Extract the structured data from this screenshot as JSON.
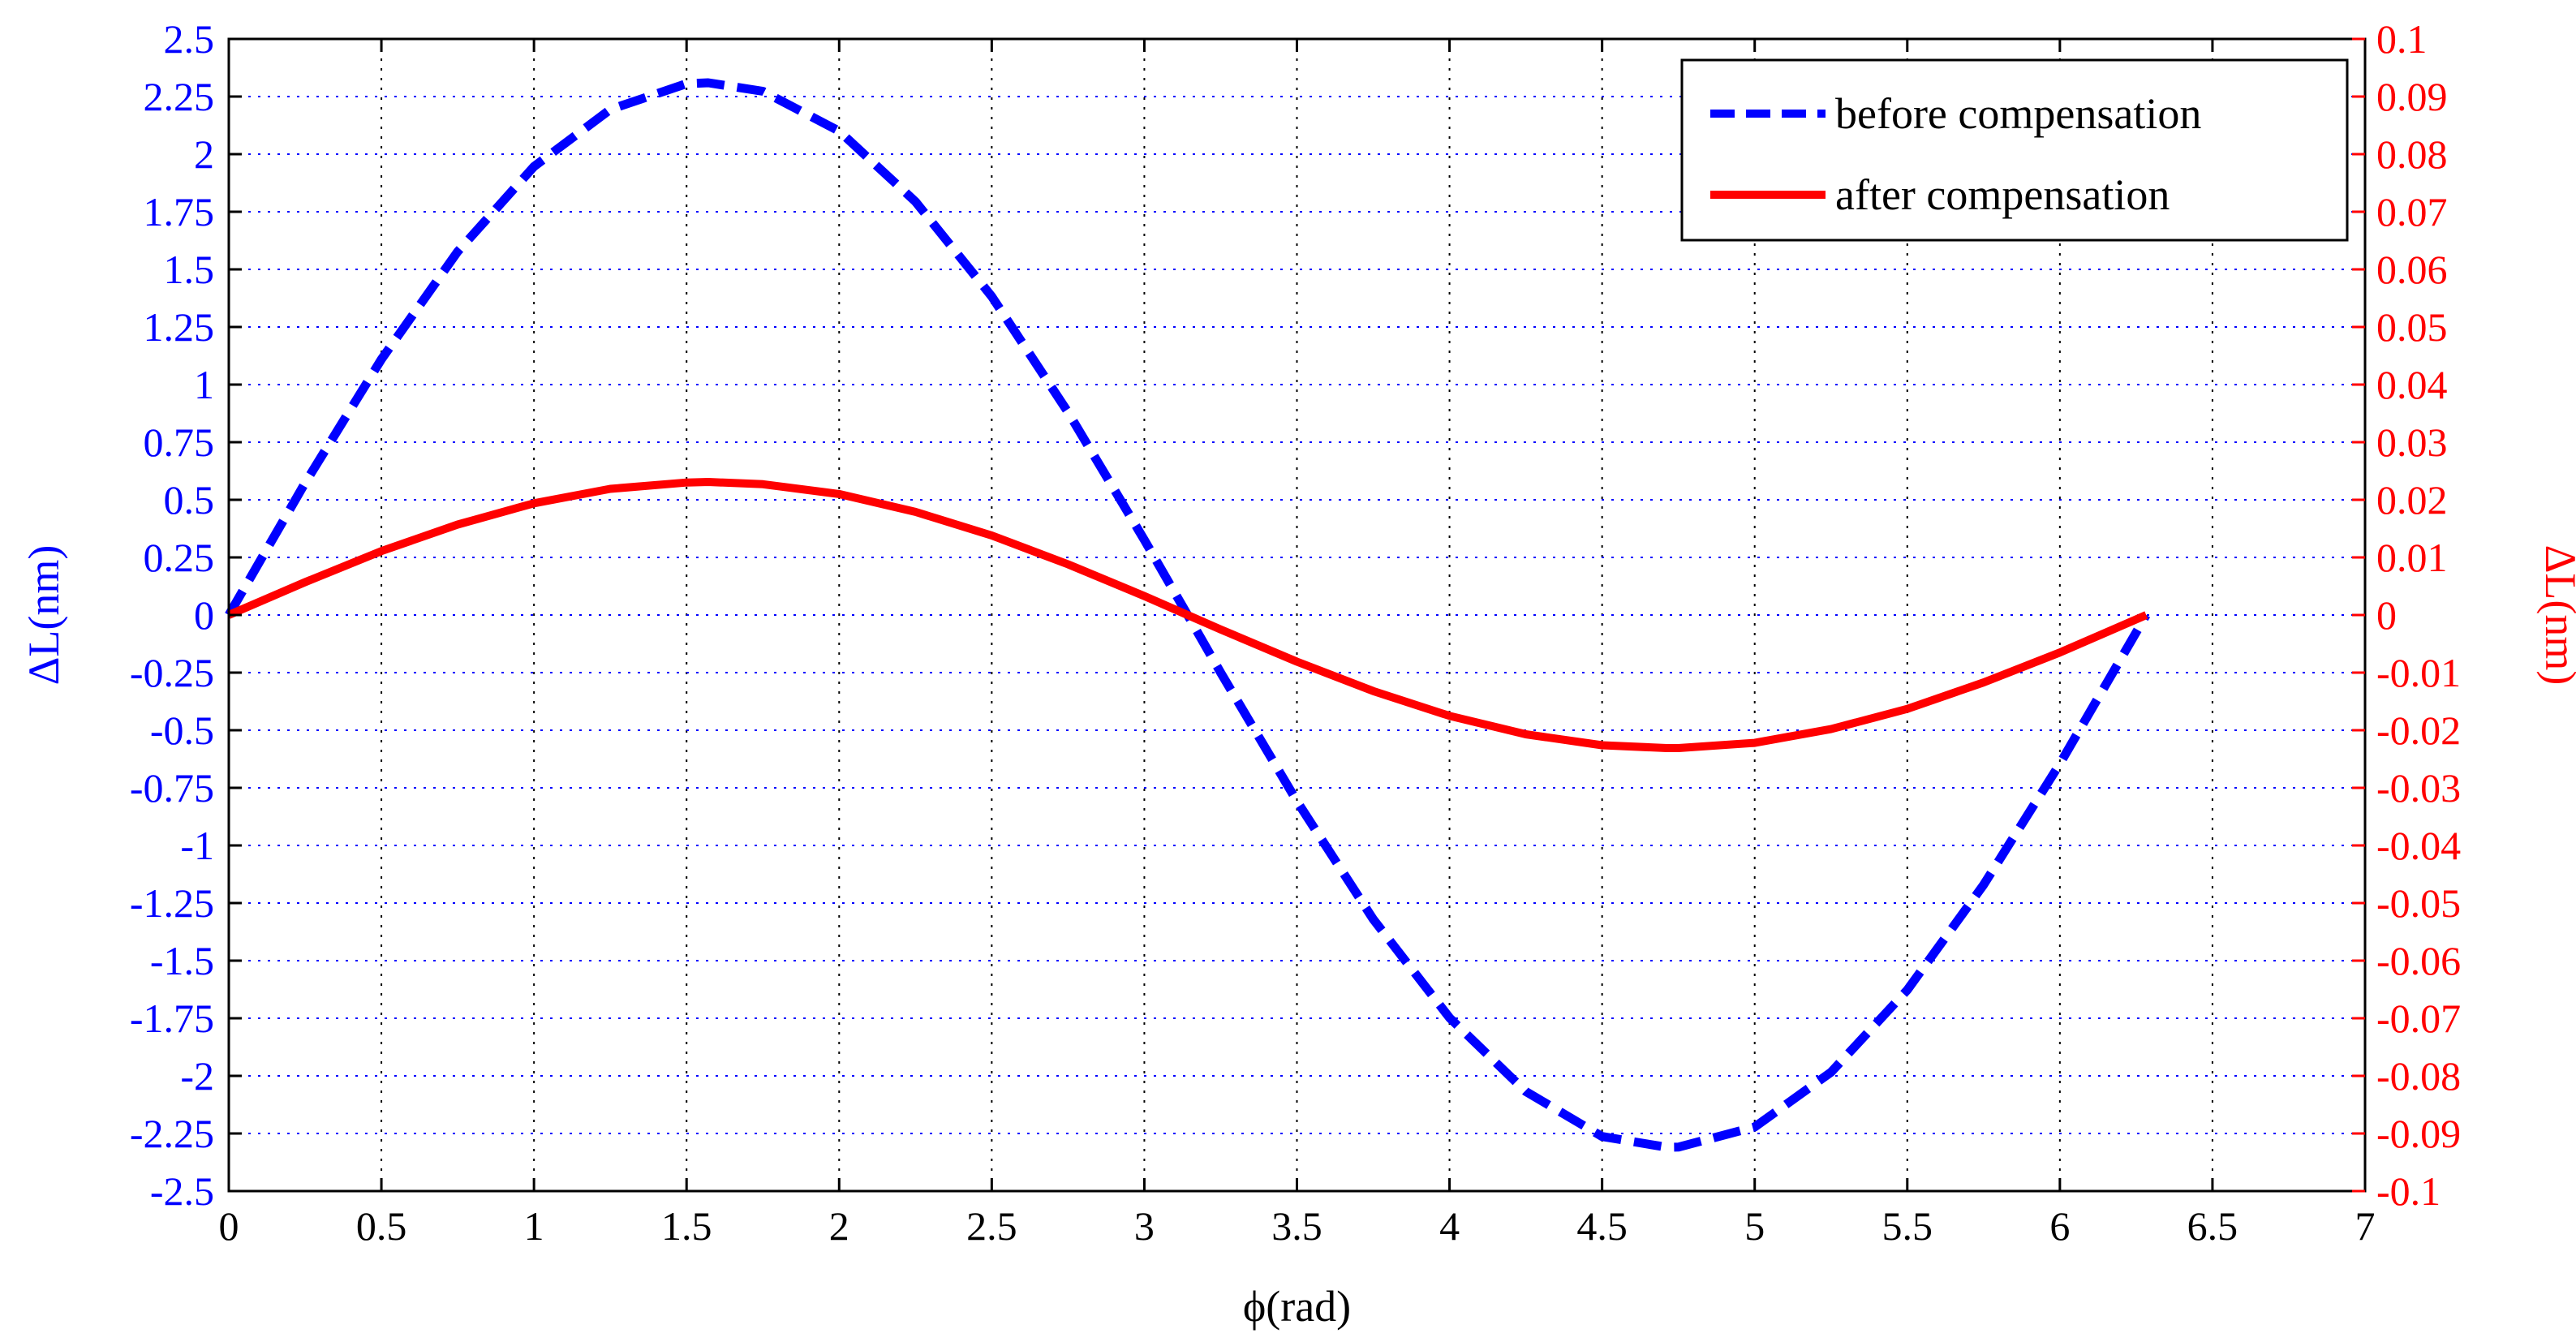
{
  "chart_data": {
    "type": "line",
    "xlabel": "ϕ(rad)",
    "ylabel_left": "ΔL(nm)",
    "ylabel_right": "ΔL(nm)",
    "xlim": [
      0,
      7
    ],
    "ylim_left": [
      -2.5,
      2.5
    ],
    "ylim_right": [
      -0.1,
      0.1
    ],
    "grid": true,
    "legend_position": "top-right",
    "x_ticks": [
      "0",
      "0.5",
      "1",
      "1.5",
      "2",
      "2.5",
      "3",
      "3.5",
      "4",
      "4.5",
      "5",
      "5.5",
      "6",
      "6.5",
      "7"
    ],
    "y_ticks_left": [
      "2.5",
      "2.25",
      "2",
      "1.75",
      "1.5",
      "1.25",
      "1",
      "0.75",
      "0.5",
      "0.25",
      "0",
      "-0.25",
      "-0.5",
      "-0.75",
      "-1",
      "-1.25",
      "-1.5",
      "-1.75",
      "-2",
      "-2.25",
      "-2.5"
    ],
    "y_ticks_right": [
      "0.1",
      "0.09",
      "0.08",
      "0.07",
      "0.06",
      "0.05",
      "0.04",
      "0.03",
      "0.02",
      "0.01",
      "0",
      "-0.01",
      "-0.02",
      "-0.03",
      "-0.04",
      "-0.05",
      "-0.06",
      "-0.07",
      "-0.08",
      "-0.09",
      "-0.1"
    ],
    "series": [
      {
        "name": "before compensation",
        "axis": "left",
        "style": "dashed",
        "color": "#0000ff",
        "x": [
          0,
          0.25,
          0.5,
          0.75,
          1,
          1.25,
          1.5,
          1.571,
          1.75,
          2,
          2.25,
          2.5,
          2.75,
          3,
          3.142,
          3.25,
          3.5,
          3.75,
          4,
          4.25,
          4.5,
          4.712,
          4.75,
          5,
          5.25,
          5.5,
          5.75,
          6,
          6.283
        ],
        "y": [
          0,
          0.573,
          1.11,
          1.577,
          1.946,
          2.194,
          2.306,
          2.31,
          2.273,
          2.1,
          1.794,
          1.382,
          0.88,
          0.326,
          0,
          -0.25,
          -0.808,
          -1.32,
          -1.748,
          -2.068,
          -2.263,
          -2.31,
          -2.309,
          -2.222,
          -1.984,
          -1.627,
          -1.171,
          -0.645,
          0
        ]
      },
      {
        "name": "after compensation",
        "axis": "right",
        "style": "solid",
        "color": "#ff0000",
        "x": [
          0,
          0.25,
          0.5,
          0.75,
          1,
          1.25,
          1.5,
          1.571,
          1.75,
          2,
          2.25,
          2.5,
          2.75,
          3,
          3.142,
          3.25,
          3.5,
          3.75,
          4,
          4.25,
          4.5,
          4.712,
          4.75,
          5,
          5.25,
          5.5,
          5.75,
          6,
          6.283
        ],
        "y": [
          0,
          0.0057,
          0.0111,
          0.0157,
          0.0194,
          0.0219,
          0.023,
          0.0231,
          0.0227,
          0.021,
          0.0179,
          0.0138,
          0.0088,
          0.0033,
          0,
          -0.0025,
          -0.0081,
          -0.0132,
          -0.0175,
          -0.0207,
          -0.0226,
          -0.0231,
          -0.0231,
          -0.0222,
          -0.0198,
          -0.0163,
          -0.0117,
          -0.0065,
          0
        ]
      }
    ]
  },
  "colors": {
    "left_axis": "#0000ff",
    "right_axis": "#ff0000",
    "grid": "#0000ff",
    "frame": "#000000"
  }
}
